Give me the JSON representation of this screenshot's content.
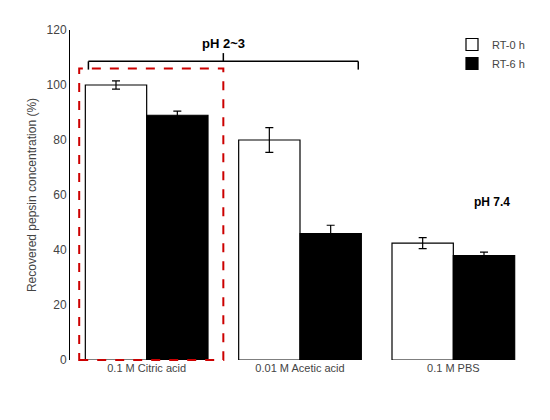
{
  "chart_data": {
    "type": "bar",
    "categories": [
      "0.1 M Citric acid",
      "0.01 M Acetic acid",
      "0.1 M PBS"
    ],
    "series": [
      {
        "name": "RT-0 h",
        "color": "white",
        "values": [
          100,
          80,
          42.5
        ],
        "errors": [
          1.5,
          4.5,
          2.0
        ]
      },
      {
        "name": "RT-6 h",
        "color": "black",
        "values": [
          89,
          46,
          38
        ],
        "errors": [
          1.5,
          3.0,
          1.2
        ]
      }
    ],
    "ylabel": "Recovered pepsin concentration (%)",
    "ylim": [
      0,
      120
    ],
    "yticks": [
      0,
      20,
      40,
      60,
      80,
      100,
      120
    ],
    "grid": false,
    "legend": "upper right",
    "annotations": [
      "pH 2~3",
      "pH 7.4"
    ]
  }
}
